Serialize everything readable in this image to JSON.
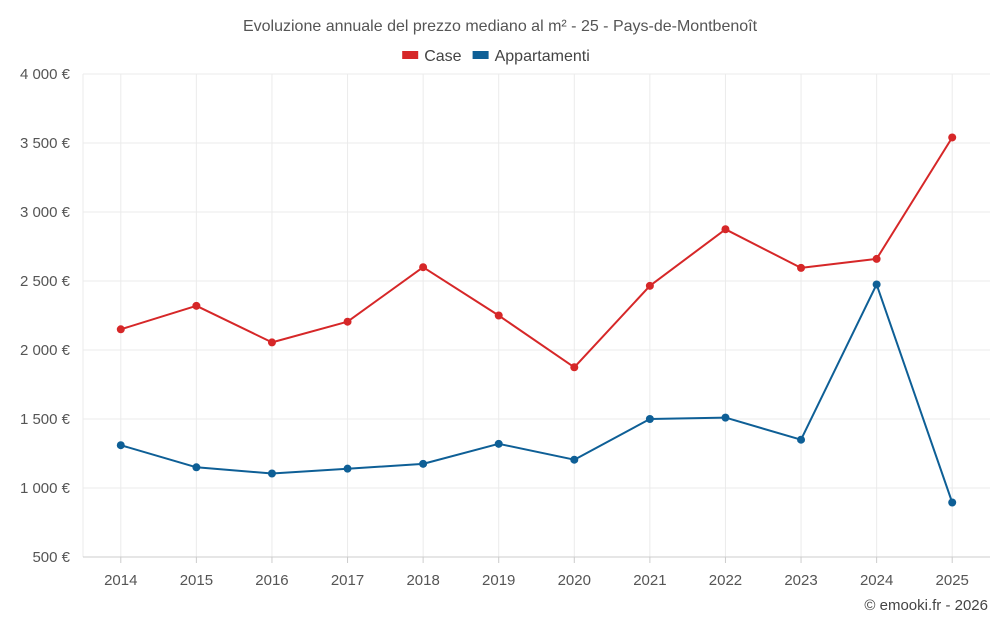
{
  "chart_data": {
    "type": "line",
    "title": "Evoluzione annuale del prezzo mediano al m² - 25 - Pays-de-Montbenoît",
    "categories": [
      "2014",
      "2015",
      "2016",
      "2017",
      "2018",
      "2019",
      "2020",
      "2021",
      "2022",
      "2023",
      "2024",
      "2025"
    ],
    "ylim": [
      500,
      4000
    ],
    "yticks": [
      500,
      1000,
      1500,
      2000,
      2500,
      3000,
      3500,
      4000
    ],
    "ytick_labels": [
      "500 €",
      "1 000 €",
      "1 500 €",
      "2 000 €",
      "2 500 €",
      "3 000 €",
      "3 500 €",
      "4 000 €"
    ],
    "legend_position": "top-center",
    "grid": true,
    "series": [
      {
        "name": "Case",
        "color": "#d62728",
        "values": [
          2150,
          2320,
          2055,
          2205,
          2600,
          2250,
          1875,
          2465,
          2875,
          2595,
          2660,
          3540
        ]
      },
      {
        "name": "Appartamenti",
        "color": "#0e5f96",
        "values": [
          1310,
          1150,
          1105,
          1140,
          1175,
          1320,
          1205,
          1500,
          1510,
          1350,
          2475,
          895
        ]
      }
    ]
  },
  "credit": "© emooki.fr - 2026"
}
